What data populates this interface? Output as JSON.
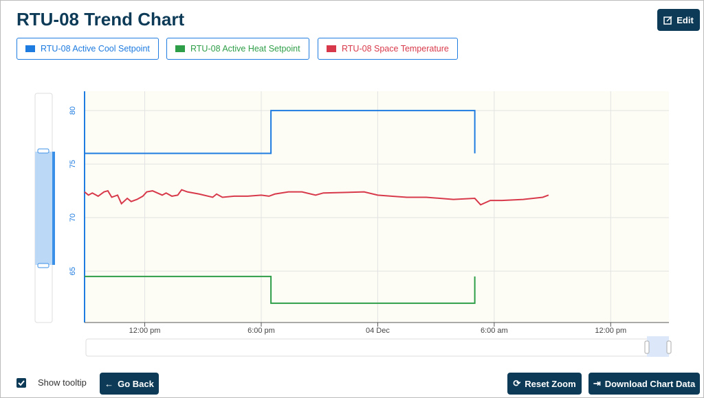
{
  "header": {
    "title": "RTU-08 Trend Chart",
    "edit": "Edit"
  },
  "chart_data": {
    "type": "line",
    "series": [
      {
        "name": "RTU-08 Active Cool Setpoint",
        "color": "#1e7be0",
        "x": [
          8.9,
          18.5,
          18.5,
          29.0,
          29.0
        ],
        "values": [
          76,
          76,
          80,
          80,
          76
        ]
      },
      {
        "name": "RTU-08 Active Heat Setpoint",
        "color": "#2e9e48",
        "x": [
          8.9,
          18.5,
          18.5,
          29.0,
          29.0
        ],
        "values": [
          64.5,
          64.5,
          62,
          62,
          64.5
        ]
      },
      {
        "name": "RTU-08 Space Temperature",
        "color": "#d8394a",
        "x": [
          8.9,
          9.1,
          9.3,
          9.6,
          9.9,
          10.1,
          10.3,
          10.6,
          10.8,
          11.1,
          11.3,
          11.6,
          11.9,
          12.1,
          12.4,
          12.9,
          13.1,
          13.4,
          13.7,
          13.9,
          14.2,
          14.8,
          15.5,
          15.7,
          16.0,
          16.6,
          17.3,
          18.0,
          18.4,
          18.7,
          19.4,
          20.1,
          20.8,
          21.2,
          23.3,
          24.0,
          24.7,
          25.5,
          26.5,
          27.9,
          29.0,
          29.3,
          29.8,
          30.4,
          31.5,
          32.5,
          32.8
        ],
        "values": [
          72.4,
          72.1,
          72.3,
          72.0,
          72.4,
          72.5,
          71.9,
          72.1,
          71.3,
          71.8,
          71.5,
          71.7,
          72.0,
          72.4,
          72.5,
          72.1,
          72.3,
          72.0,
          72.1,
          72.6,
          72.4,
          72.2,
          71.9,
          72.2,
          71.9,
          72.0,
          72.0,
          72.1,
          72.0,
          72.2,
          72.4,
          72.4,
          72.1,
          72.3,
          72.4,
          72.1,
          72.0,
          71.9,
          71.9,
          71.7,
          71.8,
          71.2,
          71.6,
          71.6,
          71.7,
          71.9,
          72.1
        ]
      }
    ],
    "xlim": [
      8.9,
      39.0
    ],
    "xticks": [
      {
        "value": 12,
        "label": "12:00 pm"
      },
      {
        "value": 18,
        "label": "6:00 pm"
      },
      {
        "value": 24,
        "label": "04 Dec"
      },
      {
        "value": 30,
        "label": "6:00 am"
      },
      {
        "value": 36,
        "label": "12:00 pm"
      }
    ],
    "ylim": [
      60.2,
      81.8
    ],
    "yticks": [
      65,
      70,
      75,
      80
    ],
    "grid": true
  },
  "footer": {
    "tooltip": "Show tooltip",
    "back": "Go Back",
    "reset": "Reset Zoom",
    "download": "Download Chart Data"
  }
}
